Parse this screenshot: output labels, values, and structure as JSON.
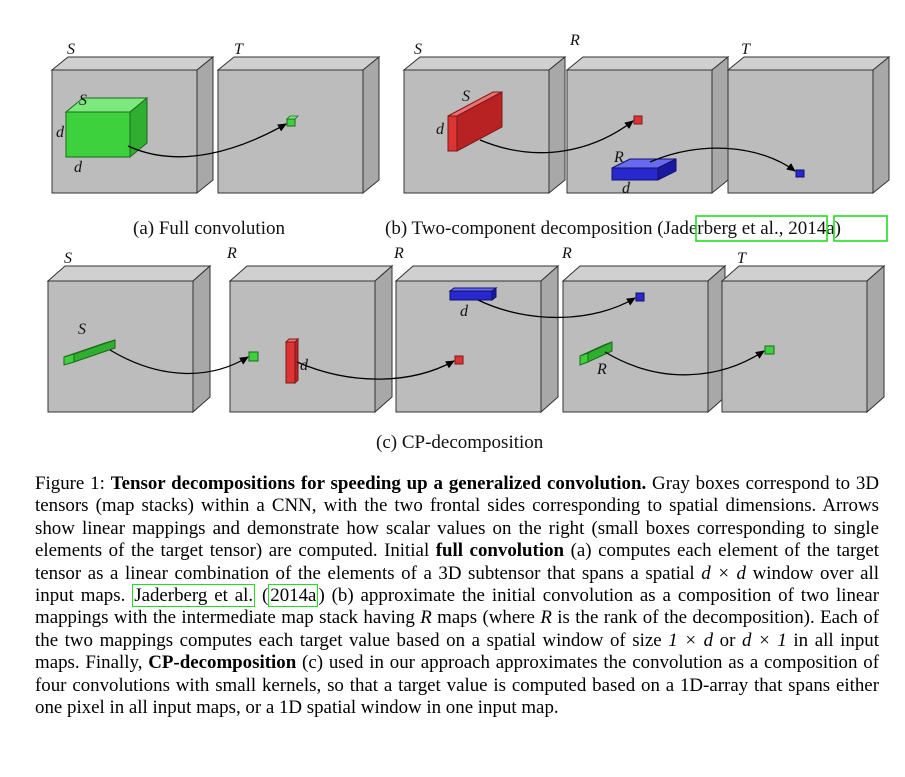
{
  "panels": {
    "a": {
      "caption": "(a) Full convolution",
      "labels": [
        "S",
        "T",
        "S",
        "d",
        "d"
      ]
    },
    "b": {
      "caption_prefix": "(b) Two-component decomposition (",
      "cite1": "Jaderberg et al.",
      "sep": ", ",
      "cite2": "2014a",
      "suffix": ")",
      "labels": [
        "S",
        "R",
        "T",
        "S",
        "d",
        "R",
        "d"
      ]
    },
    "c": {
      "caption": "(c) CP-decomposition",
      "labels": [
        "S",
        "R",
        "R",
        "R",
        "T",
        "S",
        "d",
        "d",
        "R"
      ]
    }
  },
  "colors": {
    "box": "#bdbdbd",
    "box_edge": "#333333",
    "green": "#3dd13d",
    "red": "#dd3333",
    "blue": "#2828cc",
    "cite": "#22dd22"
  },
  "caption": {
    "fig_label": "Figure 1: ",
    "title": "Tensor decompositions for speeding up a generalized convolution.",
    "t1": " Gray boxes correspond to 3D tensors (map stacks) within a CNN, with the two frontal sides corresponding to spatial dimensions. Arrows show linear mappings and demonstrate how scalar values on the right (small boxes corresponding to single elements of the target tensor) are computed. Initial ",
    "b1": "full convolution",
    "t2": " (a) computes each element of the target tensor as a linear combination of the elements of a 3D subtensor that spans a spatial ",
    "m1": "d × d",
    "t3": " window over all input maps. ",
    "cite1": "Jaderberg et al.",
    "t4": " (",
    "cite2": "2014a",
    "t5": ") (b) approximate the initial convolution as a composition of two linear mappings with the intermediate map stack having ",
    "m2": "R",
    "t6": " maps (where ",
    "m3": "R",
    "t7": " is the rank of the decomposition). Each of the two mappings computes each target value based on a spatial window of size ",
    "m4": "1 × d",
    "t8": " or ",
    "m5": "d × 1",
    "t9": " in all input maps. Finally, ",
    "b2": "CP-decomposition",
    "t10": " (c) used in our approach approximates the convolution as a composition of four convolutions with small kernels, so that a target value is computed based on a 1D-array that spans either one pixel in all input maps, or a 1D spatial window in one input map."
  }
}
